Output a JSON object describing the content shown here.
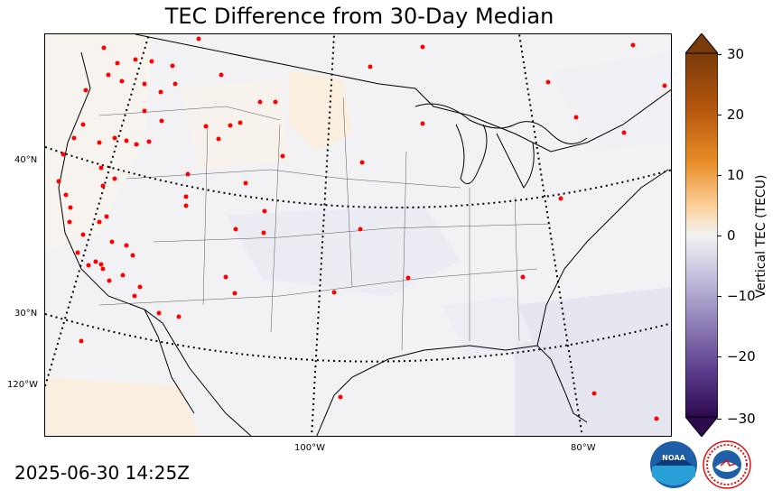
{
  "title": "TEC Difference from 30-Day Median",
  "timestamp": "2025-06-30 14:25Z",
  "lat_labels": [
    "40°N",
    "30°N",
    "120°W"
  ],
  "lon_labels": [
    "100°W",
    "80°W"
  ],
  "colorbar": {
    "label": "Vertical TEC (TECU)",
    "ticks": [
      "30",
      "20",
      "10",
      "0",
      "−10",
      "−20",
      "−30"
    ],
    "min": -30,
    "max": 30,
    "colors": {
      "max": "#7a3b0a",
      "high": "#d9781c",
      "mid_high": "#fbd19a",
      "zero": "#f2f2f2",
      "mid_low": "#c9c6e0",
      "low": "#6a4c9c",
      "min": "#2d0a4e"
    }
  },
  "logos": {
    "noaa": "NOAA",
    "nws": "NATIONAL WEATHER SERVICE"
  },
  "station_color": "#ff0000"
}
